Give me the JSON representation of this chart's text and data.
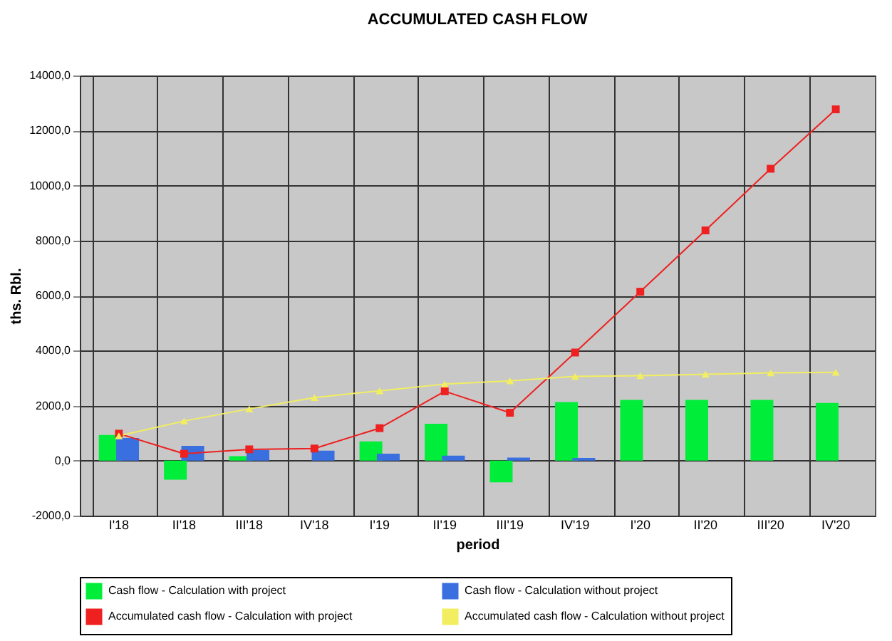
{
  "chart_data": {
    "type": "bar",
    "title": "ACCUMULATED CASH FLOW",
    "xlabel": "period",
    "ylabel": "ths. Rbl.",
    "categories": [
      "I'18",
      "II'18",
      "III'18",
      "IV'18",
      "I'19",
      "II'19",
      "III'19",
      "IV'19",
      "I'20",
      "II'20",
      "III'20",
      "IV'20"
    ],
    "series": [
      {
        "name": "Cash flow - Calculation with project",
        "color": "#00ee3a",
        "values": [
          930,
          -690,
          160,
          0,
          700,
          1340,
          -790,
          2130,
          2210,
          2210,
          2210,
          2100
        ]
      },
      {
        "name": "Cash flow - Calculation without project",
        "color": "#3a6fe0",
        "values": [
          820,
          540,
          380,
          360,
          250,
          180,
          110,
          100,
          0,
          0,
          0,
          0
        ]
      },
      {
        "name": "Accumulated cash flow - Calculation with project",
        "color": "#ee2020",
        "type": "line",
        "marker": "square",
        "values": [
          980,
          250,
          410,
          440,
          1180,
          2520,
          1740,
          3930,
          6140,
          8370,
          10610,
          12770
        ]
      },
      {
        "name": "Accumulated cash flow - Calculation without project",
        "color": "#f2ee60",
        "type": "line",
        "marker": "triangle",
        "values": [
          900,
          1440,
          1880,
          2290,
          2540,
          2780,
          2900,
          3060,
          3090,
          3140,
          3190,
          3210
        ]
      }
    ],
    "ylim": [
      -2000,
      14000
    ],
    "yticks": [
      {
        "value": -2000,
        "label": "-2000,0"
      },
      {
        "value": 0,
        "label": "0,0"
      },
      {
        "value": 2000,
        "label": "2000,0"
      },
      {
        "value": 4000,
        "label": "4000,0"
      },
      {
        "value": 6000,
        "label": "6000,0"
      },
      {
        "value": 8000,
        "label": "8000,0"
      },
      {
        "value": 10000,
        "label": "10000,0"
      },
      {
        "value": 12000,
        "label": "12000,0"
      },
      {
        "value": 14000,
        "label": "14000,0"
      }
    ],
    "grid": true,
    "legend": "bottom"
  }
}
